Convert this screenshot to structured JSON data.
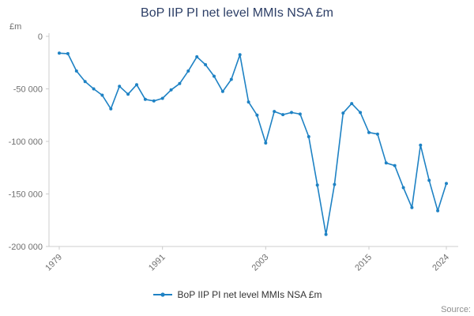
{
  "title": "BoP IIP PI net level MMIs NSA £m",
  "y_axis_unit": "£m",
  "source_label": "Source:",
  "legend": {
    "label": "BoP IIP PI net level MMIs NSA £m"
  },
  "colors": {
    "line": "#1e82c4",
    "axis": "#cccccc",
    "tick_text": "#707070",
    "title_text": "#2c3e66",
    "legend_text": "#333333",
    "source_text": "#8e8e8e"
  },
  "chart_data": {
    "type": "line",
    "title": "BoP IIP PI net level MMIs NSA £m",
    "xlabel": "",
    "ylabel": "£m",
    "series_name": "BoP IIP PI net level MMIs NSA £m",
    "x": [
      1979,
      1980,
      1981,
      1982,
      1983,
      1984,
      1985,
      1986,
      1987,
      1988,
      1989,
      1990,
      1991,
      1992,
      1993,
      1994,
      1995,
      1996,
      1997,
      1998,
      1999,
      2000,
      2001,
      2002,
      2003,
      2004,
      2005,
      2006,
      2007,
      2008,
      2009,
      2010,
      2011,
      2012,
      2013,
      2014,
      2015,
      2016,
      2017,
      2018,
      2019,
      2020,
      2021,
      2022,
      2023,
      2024
    ],
    "values": [
      -16000,
      -16500,
      -33000,
      -43000,
      -50000,
      -56000,
      -69000,
      -47500,
      -55000,
      -46000,
      -60000,
      -61500,
      -59000,
      -51000,
      -45000,
      -33000,
      -19500,
      -27000,
      -38000,
      -52500,
      -41000,
      -17500,
      -62500,
      -75000,
      -101500,
      -71500,
      -74500,
      -72500,
      -74000,
      -95500,
      -141500,
      -188500,
      -141000,
      -73000,
      -64000,
      -72500,
      -91500,
      -93000,
      -120500,
      -123000,
      -144000,
      -163000,
      -103500,
      -137000,
      -166000,
      -140000
    ],
    "ylim": [
      -200000,
      0
    ],
    "xticks": [
      1979,
      1991,
      2003,
      2015,
      2024
    ],
    "yticks": [
      {
        "value": 0,
        "label": "0"
      },
      {
        "value": -50000,
        "label": "-50 000"
      },
      {
        "value": -100000,
        "label": "-100 000"
      },
      {
        "value": -150000,
        "label": "-150 000"
      },
      {
        "value": -200000,
        "label": "-200 000"
      }
    ],
    "grid": false,
    "markers": true,
    "legend_position": "bottom"
  }
}
